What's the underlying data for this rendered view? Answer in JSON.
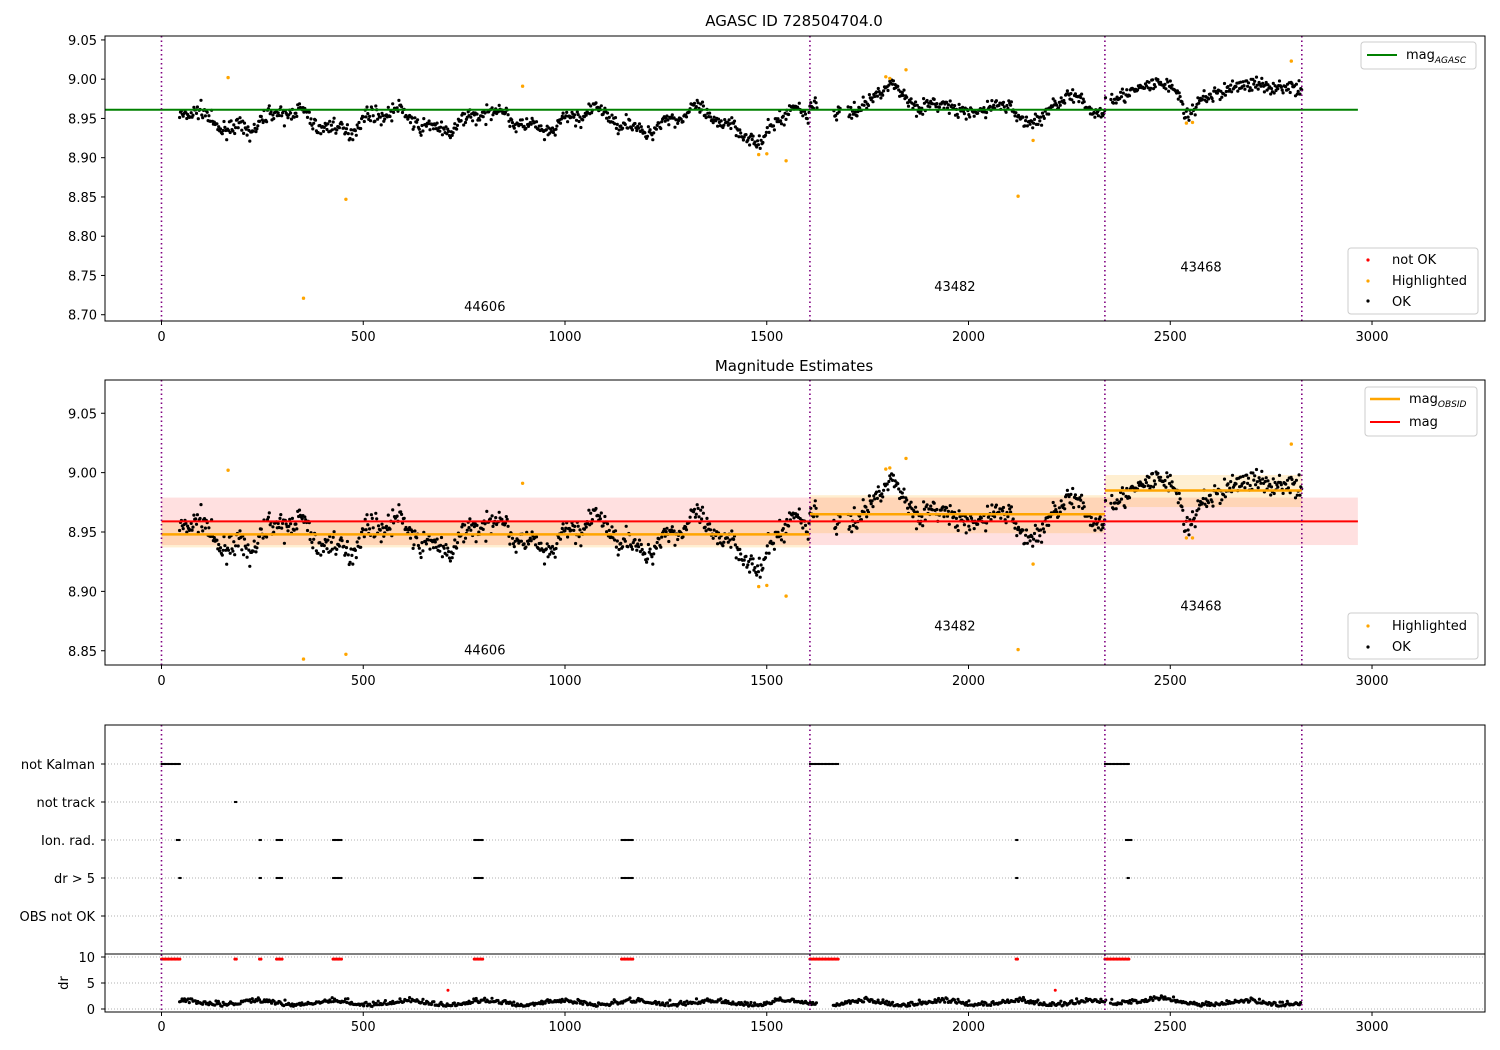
{
  "chart_data": [
    {
      "type": "scatter",
      "title": "AGASC ID 728504704.0",
      "xlim": [
        -140,
        3280
      ],
      "ylim": [
        8.692,
        9.055
      ],
      "xticks": [
        "0",
        "500",
        "1000",
        "1500",
        "2000",
        "2500",
        "3000"
      ],
      "yticks": [
        "8.70",
        "8.75",
        "8.80",
        "8.85",
        "8.90",
        "8.95",
        "9.00",
        "9.05"
      ],
      "grid": false,
      "legend_placement": [
        "top-right",
        "bottom-right"
      ],
      "obsids": [
        {
          "label": "44606",
          "x": 750,
          "y": 8.705
        },
        {
          "label": "43482",
          "x": 1915,
          "y": 8.73
        },
        {
          "label": "43468",
          "x": 2525,
          "y": 8.755
        }
      ],
      "obs_boundaries": [
        0,
        1607,
        2338,
        2826
      ],
      "mag_agasc": 8.961,
      "legend": [
        "mag",
        "not OK",
        "Highlighted",
        "OK"
      ],
      "series": [
        {
          "name": "OK",
          "color": "#000000"
        },
        {
          "name": "Highlighted",
          "color": "#ffa500",
          "points": [
            [
              165,
              9.002
            ],
            [
              352,
              8.721
            ],
            [
              457,
              8.847
            ],
            [
              895,
              8.991
            ],
            [
              1480,
              8.904
            ],
            [
              1500,
              8.905
            ],
            [
              1548,
              8.896
            ],
            [
              1795,
              9.003
            ],
            [
              1805,
              9.001
            ],
            [
              1845,
              9.012
            ],
            [
              2123,
              8.851
            ],
            [
              2160,
              8.922
            ],
            [
              2540,
              8.944
            ],
            [
              2555,
              8.945
            ],
            [
              2800,
              9.023
            ]
          ]
        }
      ]
    },
    {
      "type": "scatter",
      "title": "Magnitude Estimates",
      "xlim": [
        -140,
        3280
      ],
      "ylim": [
        8.838,
        9.078
      ],
      "xticks": [
        "0",
        "500",
        "1000",
        "1500",
        "2000",
        "2500",
        "3000"
      ],
      "yticks": [
        "8.85",
        "8.90",
        "8.95",
        "9.00",
        "9.05"
      ],
      "grid": false,
      "legend_placement": [
        "top-right",
        "bottom-right"
      ],
      "obsids": [
        {
          "label": "44606",
          "x": 750,
          "y": 8.847
        },
        {
          "label": "43482",
          "x": 1915,
          "y": 8.867
        },
        {
          "label": "43468",
          "x": 2525,
          "y": 8.884
        }
      ],
      "obs_boundaries": [
        0,
        1607,
        2338,
        2826
      ],
      "mag": 8.959,
      "mag_band": [
        8.939,
        8.979
      ],
      "mag_obsid": [
        {
          "x0": 0,
          "x1": 1607,
          "y": 8.948,
          "band": [
            8.937,
            8.958
          ]
        },
        {
          "x0": 1607,
          "x1": 2338,
          "y": 8.965,
          "band": [
            8.949,
            8.981
          ]
        },
        {
          "x0": 2338,
          "x1": 2826,
          "y": 8.985,
          "band": [
            8.971,
            8.998
          ]
        }
      ],
      "legend": [
        "mag",
        "mag",
        "Highlighted",
        "OK"
      ],
      "series": [
        {
          "name": "OK",
          "color": "#000000"
        },
        {
          "name": "Highlighted",
          "color": "#ffa500",
          "points": [
            [
              165,
              9.002
            ],
            [
              352,
              8.843
            ],
            [
              457,
              8.847
            ],
            [
              895,
              8.991
            ],
            [
              1480,
              8.904
            ],
            [
              1500,
              8.905
            ],
            [
              1548,
              8.896
            ],
            [
              1795,
              9.003
            ],
            [
              1805,
              9.004
            ],
            [
              1845,
              9.012
            ],
            [
              2123,
              8.851
            ],
            [
              2160,
              8.923
            ],
            [
              2540,
              8.945
            ],
            [
              2555,
              8.945
            ],
            [
              2800,
              9.024
            ]
          ]
        }
      ]
    },
    {
      "type": "scatter",
      "title": "",
      "xlim": [
        -140,
        3280
      ],
      "xticks": [
        "0",
        "500",
        "1000",
        "1500",
        "2000",
        "2500",
        "3000"
      ],
      "flag_rows": [
        "not Kalman",
        "not track",
        "Ion. rad.",
        "dr > 5",
        "OBS not OK"
      ],
      "flag_points": {
        "not Kalman": [
          [
            0,
            48
          ],
          [
            1607,
            1677
          ],
          [
            2338,
            2400
          ]
        ],
        "not track": [
          [
            182,
            186
          ]
        ],
        "Ion. rad.": [
          [
            38,
            48
          ],
          [
            243,
            247
          ],
          [
            285,
            300
          ],
          [
            425,
            448
          ],
          [
            775,
            798
          ],
          [
            1140,
            1170
          ],
          [
            2118,
            2122
          ],
          [
            2390,
            2405
          ]
        ],
        "dr > 5": [
          [
            44,
            48
          ],
          [
            243,
            247
          ],
          [
            285,
            300
          ],
          [
            425,
            448
          ],
          [
            775,
            798
          ],
          [
            1140,
            1170
          ],
          [
            2118,
            2122
          ],
          [
            2394,
            2398
          ]
        ],
        "OBS not OK": []
      },
      "dr_ylabel": "dr",
      "dr_yticks": [
        "0",
        "5",
        "10"
      ],
      "dr_ylim": [
        -0.5,
        10.5
      ],
      "dr_red_points": [
        [
          710,
          3.6
        ],
        [
          2215,
          3.6
        ]
      ],
      "dr_red_ranges": [
        [
          0,
          48
        ],
        [
          182,
          186
        ],
        [
          243,
          247
        ],
        [
          285,
          300
        ],
        [
          425,
          448
        ],
        [
          775,
          798
        ],
        [
          1140,
          1170
        ],
        [
          1607,
          1677
        ],
        [
          2118,
          2122
        ],
        [
          2338,
          2400
        ]
      ]
    }
  ]
}
